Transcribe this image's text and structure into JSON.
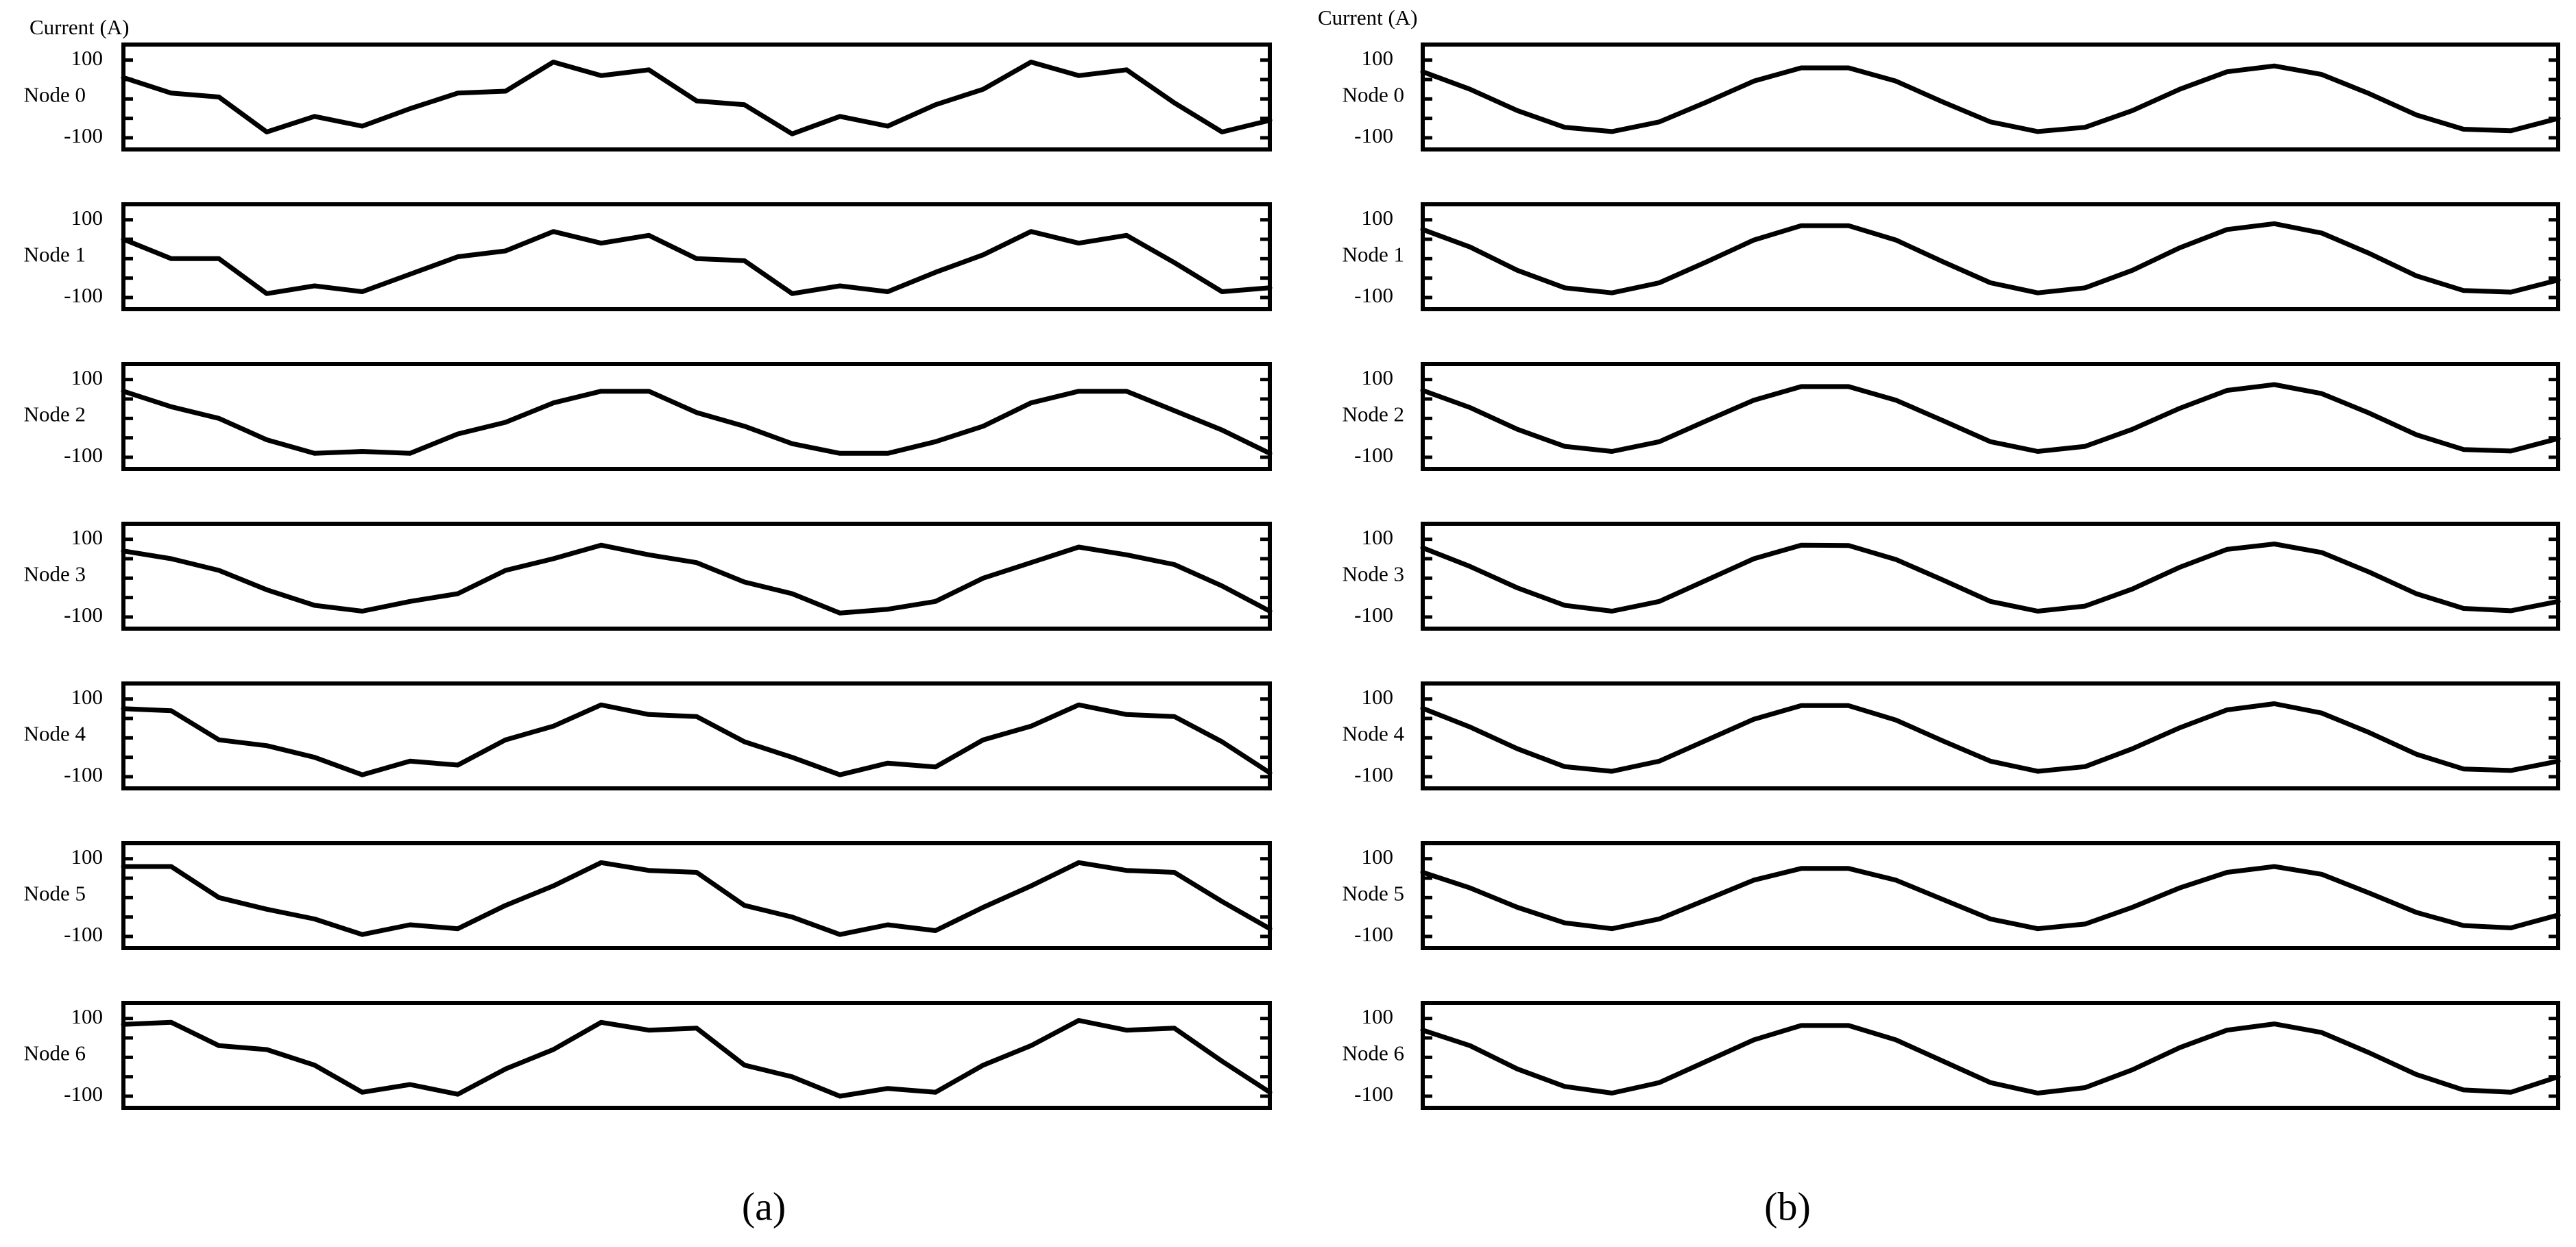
{
  "captions": [
    "(a)",
    "(b)"
  ],
  "chart_data": [
    {
      "type": "line",
      "ylabel": "Current (A)",
      "label": "Node 0",
      "color": "#000000",
      "ylim": [
        -130,
        140
      ],
      "yticks": [
        -100,
        100
      ],
      "minor_yticks": [
        -50,
        0,
        50
      ],
      "values": [
        55,
        15,
        5,
        -85,
        -45,
        -70,
        -25,
        15,
        20,
        95,
        60,
        75,
        -5,
        -15,
        -90,
        -45,
        -70,
        -15,
        25,
        95,
        60,
        75,
        -10,
        -85,
        -55
      ]
    },
    {
      "type": "line",
      "label": "Node 1",
      "color": "#000000",
      "ylim": [
        -130,
        140
      ],
      "yticks": [
        -100,
        100
      ],
      "minor_yticks": [
        -50,
        0,
        50
      ],
      "values": [
        50,
        0,
        0,
        -90,
        -70,
        -85,
        -40,
        5,
        20,
        70,
        40,
        60,
        0,
        -5,
        -90,
        -70,
        -85,
        -35,
        10,
        70,
        40,
        60,
        -10,
        -85,
        -75
      ]
    },
    {
      "type": "line",
      "label": "Node 2",
      "color": "#000000",
      "ylim": [
        -130,
        140
      ],
      "yticks": [
        -100,
        100
      ],
      "minor_yticks": [
        -50,
        0,
        50
      ],
      "values": [
        70,
        30,
        0,
        -55,
        -90,
        -85,
        -90,
        -40,
        -10,
        40,
        70,
        70,
        15,
        -20,
        -65,
        -90,
        -90,
        -60,
        -20,
        40,
        70,
        70,
        20,
        -30,
        -90
      ]
    },
    {
      "type": "line",
      "label": "Node 3",
      "color": "#000000",
      "ylim": [
        -130,
        140
      ],
      "yticks": [
        -100,
        100
      ],
      "minor_yticks": [
        -50,
        0,
        50
      ],
      "values": [
        70,
        50,
        20,
        -30,
        -70,
        -85,
        -60,
        -40,
        20,
        50,
        85,
        60,
        40,
        -10,
        -40,
        -90,
        -80,
        -60,
        0,
        40,
        80,
        60,
        35,
        -20,
        -85
      ]
    },
    {
      "type": "line",
      "label": "Node 4",
      "color": "#000000",
      "ylim": [
        -130,
        140
      ],
      "yticks": [
        -100,
        100
      ],
      "minor_yticks": [
        -50,
        0,
        50
      ],
      "values": [
        75,
        70,
        -5,
        -20,
        -50,
        -95,
        -60,
        -70,
        -5,
        30,
        85,
        60,
        55,
        -10,
        -50,
        -95,
        -65,
        -75,
        -5,
        30,
        85,
        60,
        55,
        -10,
        -90
      ]
    },
    {
      "type": "line",
      "label": "Node 5",
      "color": "#000000",
      "ylim": [
        -130,
        140
      ],
      "yticks": [
        -100,
        100
      ],
      "minor_yticks": [
        -50,
        0,
        50
      ],
      "values": [
        80,
        80,
        0,
        -30,
        -55,
        -95,
        -70,
        -80,
        -20,
        30,
        90,
        70,
        65,
        -20,
        -50,
        -95,
        -70,
        -85,
        -25,
        30,
        90,
        70,
        65,
        -10,
        -80
      ]
    },
    {
      "type": "line",
      "label": "Node 6",
      "color": "#000000",
      "ylim": [
        -130,
        140
      ],
      "yticks": [
        -100,
        100
      ],
      "minor_yticks": [
        -50,
        0,
        50
      ],
      "values": [
        85,
        90,
        30,
        20,
        -20,
        -90,
        -70,
        -95,
        -30,
        20,
        90,
        70,
        75,
        -20,
        -50,
        -100,
        -80,
        -90,
        -20,
        30,
        95,
        70,
        75,
        -10,
        -90
      ]
    },
    {
      "type": "line",
      "ylabel": "Current (A)",
      "label": "Node 0",
      "color": "#000000",
      "ylim": [
        -130,
        140
      ],
      "yticks": [
        -100,
        100
      ],
      "minor_yticks": [
        -50,
        0,
        50
      ],
      "values": [
        70,
        25,
        -30,
        -73,
        -84,
        -59,
        -8,
        46,
        80,
        80,
        46,
        -8,
        -59,
        -84,
        -73,
        -30,
        25,
        70,
        85,
        63,
        14,
        -41,
        -78,
        -82,
        -50
      ]
    },
    {
      "type": "line",
      "label": "Node 1",
      "color": "#000000",
      "ylim": [
        -130,
        140
      ],
      "yticks": [
        -100,
        100
      ],
      "minor_yticks": [
        -50,
        0,
        50
      ],
      "values": [
        75,
        30,
        -30,
        -75,
        -88,
        -62,
        -8,
        48,
        85,
        85,
        48,
        -8,
        -62,
        -88,
        -75,
        -30,
        28,
        75,
        90,
        66,
        14,
        -44,
        -82,
        -86,
        -55
      ]
    },
    {
      "type": "line",
      "label": "Node 2",
      "color": "#000000",
      "ylim": [
        -130,
        140
      ],
      "yticks": [
        -100,
        100
      ],
      "minor_yticks": [
        -50,
        0,
        50
      ],
      "values": [
        72,
        28,
        -28,
        -72,
        -85,
        -60,
        -6,
        47,
        82,
        82,
        47,
        -6,
        -60,
        -85,
        -72,
        -28,
        26,
        72,
        87,
        64,
        14,
        -42,
        -80,
        -84,
        -52
      ]
    },
    {
      "type": "line",
      "label": "Node 3",
      "color": "#000000",
      "ylim": [
        -130,
        140
      ],
      "yticks": [
        -100,
        100
      ],
      "minor_yticks": [
        -50,
        0,
        50
      ],
      "values": [
        78,
        30,
        -25,
        -70,
        -85,
        -60,
        -5,
        50,
        85,
        84,
        48,
        -5,
        -60,
        -85,
        -72,
        -28,
        28,
        74,
        88,
        66,
        16,
        -40,
        -78,
        -84,
        -60
      ]
    },
    {
      "type": "line",
      "label": "Node 4",
      "color": "#000000",
      "ylim": [
        -130,
        140
      ],
      "yticks": [
        -100,
        100
      ],
      "minor_yticks": [
        -50,
        0,
        50
      ],
      "values": [
        76,
        28,
        -28,
        -74,
        -86,
        -60,
        -6,
        48,
        83,
        83,
        46,
        -8,
        -60,
        -86,
        -74,
        -28,
        26,
        72,
        88,
        64,
        14,
        -42,
        -80,
        -84,
        -60
      ]
    },
    {
      "type": "line",
      "label": "Node 5",
      "color": "#000000",
      "ylim": [
        -130,
        140
      ],
      "yticks": [
        -100,
        100
      ],
      "minor_yticks": [
        -50,
        0,
        50
      ],
      "values": [
        65,
        25,
        -25,
        -65,
        -80,
        -55,
        -5,
        45,
        75,
        75,
        45,
        -5,
        -55,
        -80,
        -68,
        -25,
        25,
        65,
        80,
        60,
        12,
        -38,
        -72,
        -78,
        -45
      ]
    },
    {
      "type": "line",
      "label": "Node 6",
      "color": "#000000",
      "ylim": [
        -130,
        140
      ],
      "yticks": [
        -100,
        100
      ],
      "minor_yticks": [
        -50,
        0,
        50
      ],
      "values": [
        70,
        30,
        -30,
        -75,
        -92,
        -65,
        -10,
        45,
        82,
        82,
        45,
        -10,
        -65,
        -92,
        -78,
        -32,
        25,
        70,
        86,
        64,
        12,
        -44,
        -84,
        -90,
        -50
      ]
    }
  ]
}
